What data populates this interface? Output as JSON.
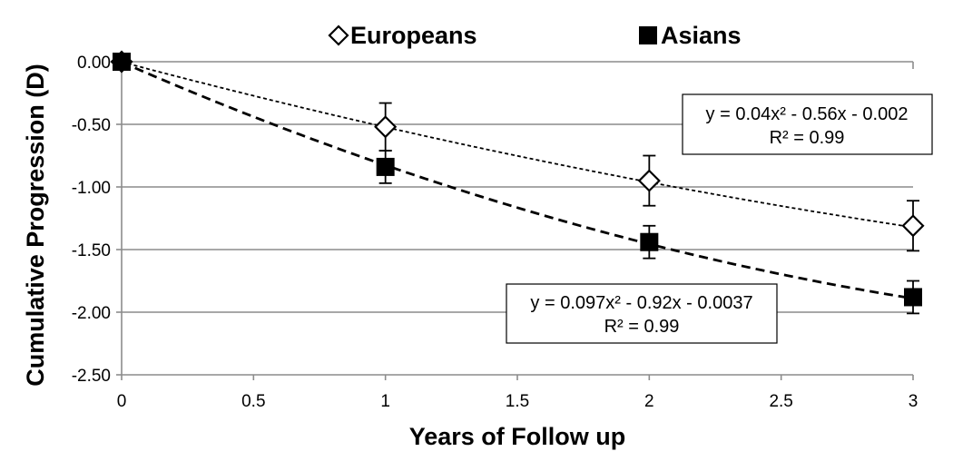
{
  "chart_data": {
    "type": "scatter",
    "xlabel": "Years of Follow up",
    "ylabel": "Cumulative Progression (D)",
    "xlim": [
      0,
      3
    ],
    "ylim": [
      -2.5,
      0
    ],
    "x_ticks": [
      0,
      0.5,
      1,
      1.5,
      2,
      2.5,
      3
    ],
    "x_tick_labels": [
      "0",
      "0.5",
      "1",
      "1.5",
      "2",
      "2.5",
      "3"
    ],
    "y_ticks": [
      0,
      -0.5,
      -1,
      -1.5,
      -2,
      -2.5
    ],
    "y_tick_labels": [
      "0.00",
      "-0.50",
      "-1.00",
      "-1.50",
      "-2.00",
      "-2.50"
    ],
    "grid": "horizontal",
    "legend_position": "top",
    "series": [
      {
        "name": "Europeans",
        "marker": "open-diamond",
        "color": "#000000",
        "x": [
          0,
          1,
          2,
          3
        ],
        "y": [
          0.0,
          -0.52,
          -0.95,
          -1.31
        ],
        "error": [
          0,
          0.19,
          0.2,
          0.2
        ],
        "trendline": {
          "type": "polynomial",
          "a": 0.04,
          "b": -0.56,
          "c": -0.002,
          "style": "dotted"
        },
        "equation": [
          "y = 0.04x² - 0.56x - 0.002",
          "R² = 0.99"
        ]
      },
      {
        "name": "Asians",
        "marker": "filled-square",
        "color": "#000000",
        "x": [
          0,
          1,
          2,
          3
        ],
        "y": [
          0.0,
          -0.84,
          -1.44,
          -1.88
        ],
        "error": [
          0,
          0.13,
          0.13,
          0.13
        ],
        "trendline": {
          "type": "polynomial",
          "a": 0.097,
          "b": -0.92,
          "c": -0.0037,
          "style": "dashed"
        },
        "equation": [
          "y = 0.097x² - 0.92x - 0.0037",
          "R² = 0.99"
        ]
      }
    ]
  }
}
